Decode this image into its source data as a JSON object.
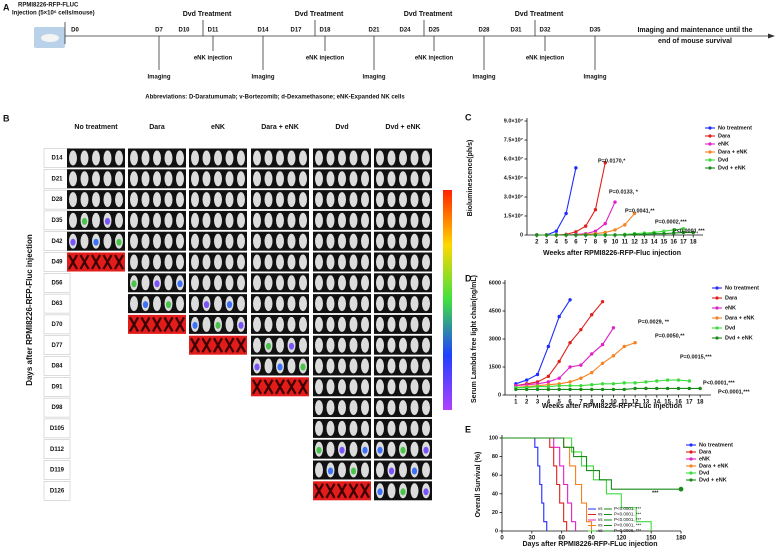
{
  "panel_labels": [
    "A",
    "B",
    "C",
    "D",
    "E"
  ],
  "panel_a": {
    "injection_title": "RPMI8226-RFP-FLUC",
    "injection_detail": "Injection (5×10⁶ cells/mouse)",
    "days": [
      "D0",
      "D7",
      "D10",
      "D11",
      "D14",
      "D17",
      "D18",
      "D21",
      "D24",
      "D25",
      "D28",
      "D31",
      "D32",
      "D35"
    ],
    "treatments": [
      "Dvd Treatment",
      "Dvd Treatment",
      "Dvd Treatment",
      "Dvd Treatment"
    ],
    "injections": [
      "eNK injection",
      "eNK injection",
      "eNK injection",
      "eNK injection"
    ],
    "imaging": [
      "Imaging",
      "Imaging",
      "Imaging",
      "Imaging",
      "Imaging"
    ],
    "end_note": [
      "Imaging  and maintenance until the",
      "end of mouse survival"
    ],
    "abbreviations": "Abbreviations: D-Daratumumab; v-Bortezomib; d-Dexamethasone; eNK-Expanded NK cells"
  },
  "panel_b": {
    "columns": [
      "No treatment",
      "Dara",
      "eNK",
      "Dara + eNK",
      "Dvd",
      "Dvd + eNK"
    ],
    "rows": [
      "D14",
      "D21",
      "D28",
      "D35",
      "D42",
      "D49",
      "D56",
      "D63",
      "D70",
      "D77",
      "D84",
      "D91",
      "D98",
      "D105",
      "D112",
      "D119",
      "D126"
    ],
    "y_label": "Days after RPMI8226-RFP-Fluc injection"
  },
  "chart_data": [
    {
      "type": "line",
      "y_label": "Bioluminescence(ph/s)",
      "x_label": "Weeks after RPMI8226-RFP-Fluc injection",
      "x": [
        2,
        3,
        4,
        5,
        6,
        7,
        8,
        9,
        10,
        11,
        12,
        13,
        14,
        15,
        16,
        17,
        18
      ],
      "xlim": [
        1,
        19
      ],
      "xticks": [
        2,
        3,
        4,
        5,
        6,
        7,
        8,
        9,
        10,
        11,
        12,
        13,
        14,
        15,
        16,
        17,
        18
      ],
      "ylim": [
        0,
        90000000
      ],
      "yticks": [
        0,
        {
          "value": 15000000,
          "label": "1.5×10⁷"
        },
        {
          "value": 30000000,
          "label": "3.0×10⁷"
        },
        {
          "value": 45000000,
          "label": "4.5×10⁷"
        },
        {
          "value": 60000000,
          "label": "6.0×10⁷"
        },
        {
          "value": 75000000,
          "label": "7.5×10⁷"
        },
        {
          "value": 90000000,
          "label": "9.0×10⁷"
        }
      ],
      "series": [
        {
          "name": "No treatment",
          "color": "#1f2bff",
          "values": [
            0,
            0,
            3000000,
            17000000,
            53000000,
            null,
            null,
            null,
            null,
            null,
            null,
            null,
            null,
            null,
            null,
            null,
            null
          ]
        },
        {
          "name": "Dara",
          "color": "#e0201b",
          "values": [
            0,
            0,
            0,
            500000,
            2500000,
            7000000,
            20000000,
            57000000,
            null,
            null,
            null,
            null,
            null,
            null,
            null,
            null,
            null
          ]
        },
        {
          "name": "eNK",
          "color": "#e020c8",
          "values": [
            0,
            0,
            0,
            0,
            500000,
            1000000,
            3000000,
            9000000,
            26000000,
            null,
            null,
            null,
            null,
            null,
            null,
            null,
            null
          ]
        },
        {
          "name": "Dara + eNK",
          "color": "#f58220",
          "values": [
            0,
            0,
            0,
            0,
            0,
            500000,
            1000000,
            2000000,
            4000000,
            8000000,
            17000000,
            null,
            null,
            null,
            null,
            null,
            null
          ]
        },
        {
          "name": "Dvd",
          "color": "#3ddc3d",
          "values": [
            0,
            0,
            0,
            0,
            0,
            0,
            0,
            0,
            0,
            500000,
            1000000,
            1500000,
            2000000,
            3000000,
            4000000,
            5000000,
            null
          ]
        },
        {
          "name": "Dvd + eNK",
          "color": "#1a8a1a",
          "values": [
            0,
            0,
            0,
            0,
            0,
            0,
            0,
            0,
            0,
            0,
            500000,
            500000,
            1000000,
            1000000,
            1500000,
            2000000,
            2000000
          ]
        }
      ],
      "annotations": [
        "P=0.0170,*",
        "P=0.0133, *",
        "P=0.0041,**",
        "P=0.0002,***",
        "P<0.0001,***"
      ]
    },
    {
      "type": "line",
      "y_label": "Serum Lambda free light chain(ng/mL)",
      "x_label": "Weeks after RPMI8226-RFP-FLuc injection",
      "x": [
        1,
        2,
        3,
        4,
        5,
        6,
        7,
        8,
        9,
        10,
        11,
        12,
        13,
        14,
        15,
        16,
        17,
        18
      ],
      "xlim": [
        0,
        19
      ],
      "xticks": [
        1,
        2,
        3,
        4,
        5,
        6,
        7,
        8,
        9,
        10,
        11,
        12,
        13,
        14,
        15,
        16,
        17,
        18
      ],
      "ylim": [
        0,
        6000
      ],
      "yticks": [
        0,
        1500,
        3000,
        4500,
        6000
      ],
      "series": [
        {
          "name": "No treatment",
          "color": "#1f2bff",
          "values": [
            600,
            800,
            1100,
            2600,
            4200,
            5100,
            null,
            null,
            null,
            null,
            null,
            null,
            null,
            null,
            null,
            null,
            null,
            null
          ]
        },
        {
          "name": "Dara",
          "color": "#e0201b",
          "values": [
            500,
            600,
            700,
            1000,
            1800,
            2800,
            3500,
            4300,
            5000,
            null,
            null,
            null,
            null,
            null,
            null,
            null,
            null,
            null
          ]
        },
        {
          "name": "eNK",
          "color": "#e020c8",
          "values": [
            500,
            550,
            600,
            700,
            900,
            1500,
            1600,
            2200,
            2700,
            3600,
            null,
            null,
            null,
            null,
            null,
            null,
            null,
            null
          ]
        },
        {
          "name": "Dara + eNK",
          "color": "#f58220",
          "values": [
            400,
            450,
            500,
            550,
            600,
            700,
            900,
            1200,
            1700,
            2100,
            2600,
            2800,
            null,
            null,
            null,
            null,
            null,
            null
          ]
        },
        {
          "name": "Dvd",
          "color": "#3ddc3d",
          "values": [
            400,
            400,
            450,
            450,
            500,
            500,
            500,
            550,
            600,
            600,
            650,
            650,
            700,
            750,
            800,
            800,
            750,
            null
          ]
        },
        {
          "name": "Dvd + eNK",
          "color": "#1a8a1a",
          "values": [
            300,
            300,
            300,
            300,
            300,
            300,
            300,
            300,
            300,
            300,
            300,
            350,
            350,
            350,
            350,
            350,
            350,
            350
          ]
        }
      ],
      "annotations": [
        "P=0.0029, **",
        "P=0.0050,**",
        "P=0.0015,***",
        "P<0.0001,***",
        "P<0.0001,***"
      ]
    },
    {
      "type": "line",
      "y_label": "Overall Survival (%)",
      "x_label": "Days after RPMI8226-RFP-FLuc injection",
      "xlim": [
        0,
        180
      ],
      "xticks": [
        0,
        30,
        60,
        90,
        120,
        150,
        180
      ],
      "ylim": [
        0,
        100
      ],
      "yticks": [
        0,
        20,
        40,
        60,
        80,
        100
      ],
      "series": [
        {
          "name": "No treatment",
          "color": "#1f2bff",
          "x": [
            0,
            33,
            33,
            36,
            36,
            38,
            38,
            40,
            40,
            42,
            42,
            45,
            45
          ],
          "values": [
            100,
            100,
            90,
            90,
            70,
            70,
            50,
            50,
            30,
            30,
            10,
            10,
            0
          ]
        },
        {
          "name": "Dara",
          "color": "#e0201b",
          "x": [
            0,
            48,
            48,
            52,
            52,
            55,
            55,
            58,
            58,
            62,
            62,
            65,
            65
          ],
          "values": [
            100,
            100,
            90,
            90,
            70,
            70,
            50,
            50,
            30,
            30,
            10,
            10,
            0
          ]
        },
        {
          "name": "eNK",
          "color": "#e020c8",
          "x": [
            0,
            52,
            52,
            58,
            58,
            62,
            62,
            66,
            66,
            70,
            70,
            74,
            74
          ],
          "values": [
            100,
            100,
            90,
            90,
            70,
            70,
            50,
            50,
            30,
            30,
            10,
            10,
            0
          ]
        },
        {
          "name": "Dara + eNK",
          "color": "#f58220",
          "x": [
            0,
            62,
            62,
            68,
            68,
            74,
            74,
            80,
            80,
            85,
            85,
            90,
            90
          ],
          "values": [
            100,
            100,
            90,
            90,
            70,
            70,
            50,
            50,
            30,
            30,
            10,
            10,
            0
          ]
        },
        {
          "name": "Dvd",
          "color": "#3ddc3d",
          "x": [
            0,
            70,
            70,
            80,
            80,
            92,
            92,
            105,
            105,
            120,
            120,
            135,
            135,
            150,
            150
          ],
          "values": [
            100,
            100,
            85,
            85,
            70,
            70,
            55,
            55,
            40,
            40,
            25,
            25,
            10,
            10,
            0
          ]
        },
        {
          "name": "Dvd + eNK",
          "color": "#1a8a1a",
          "x": [
            0,
            62,
            62,
            72,
            72,
            85,
            85,
            98,
            98,
            110,
            110,
            180
          ],
          "values": [
            100,
            100,
            90,
            90,
            80,
            80,
            65,
            65,
            55,
            55,
            45,
            45
          ]
        }
      ],
      "annotations": [
        "***"
      ],
      "comparisons": [
        {
          "label": "vs",
          "text": "P<0.0001, ***"
        },
        {
          "label": "vs",
          "text": "P<0.0001, ***"
        },
        {
          "label": "vs",
          "text": "P<0.0001, ***"
        },
        {
          "label": "vs",
          "text": "P<0.0001, ***"
        },
        {
          "label": "vs",
          "text": "P=0.0006, ***"
        }
      ]
    }
  ]
}
